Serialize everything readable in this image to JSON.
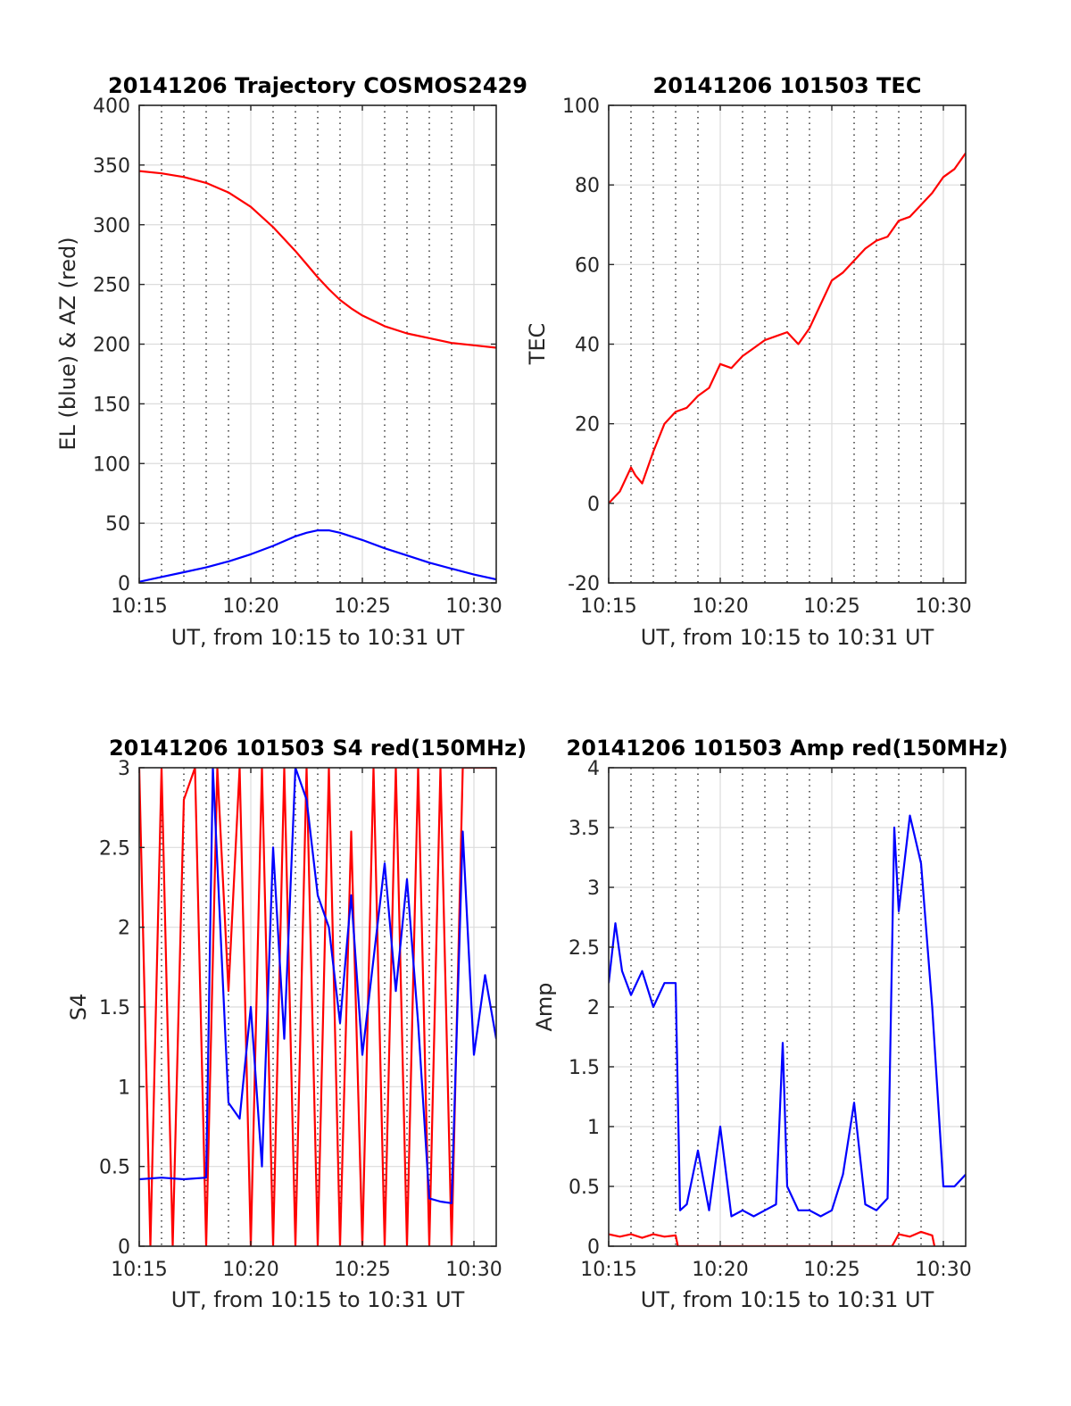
{
  "chart_data": [
    {
      "id": "trajectory",
      "type": "line",
      "title": "20141206 Trajectory COSMOS2429",
      "xlabel": "UT, from 10:15 to 10:31 UT",
      "ylabel": "EL (blue) & AZ (red)",
      "xlim": [
        0,
        16
      ],
      "ylim": [
        0,
        400
      ],
      "x_ticks": [
        "10:15",
        "10:20",
        "10:25",
        "10:30"
      ],
      "y_ticks": [
        0,
        50,
        100,
        150,
        200,
        250,
        300,
        350,
        400
      ],
      "grid": true,
      "colors": {
        "az": "#ff0000",
        "el": "#0000ff"
      },
      "series": [
        {
          "name": "AZ (red)",
          "color": "#ff0000",
          "x": [
            0,
            1,
            2,
            3,
            4,
            5,
            6,
            7,
            7.5,
            8,
            8.5,
            9,
            9.5,
            10,
            11,
            12,
            13,
            14,
            15,
            16
          ],
          "values": [
            345,
            343,
            340,
            335,
            327,
            315,
            298,
            278,
            267,
            256,
            246,
            237,
            230,
            224,
            215,
            209,
            205,
            201,
            199,
            197
          ]
        },
        {
          "name": "EL (blue)",
          "color": "#0000ff",
          "x": [
            0,
            1,
            2,
            3,
            4,
            5,
            6,
            7,
            7.5,
            8,
            8.5,
            9,
            10,
            11,
            12,
            13,
            14,
            15,
            16
          ],
          "values": [
            1,
            5,
            9,
            13,
            18,
            24,
            31,
            39,
            42,
            44,
            44,
            42,
            36,
            29,
            23,
            17,
            12,
            7,
            3
          ]
        }
      ]
    },
    {
      "id": "tec",
      "type": "line",
      "title": "20141206 101503 TEC",
      "xlabel": "UT, from 10:15 to 10:31 UT",
      "ylabel": "TEC",
      "xlim": [
        0,
        16
      ],
      "ylim": [
        -20,
        100
      ],
      "x_ticks": [
        "10:15",
        "10:20",
        "10:25",
        "10:30"
      ],
      "y_ticks": [
        -20,
        0,
        20,
        40,
        60,
        80,
        100
      ],
      "grid": true,
      "series": [
        {
          "name": "",
          "color": "#ff0000",
          "x": [
            0,
            0.5,
            1,
            1.2,
            1.5,
            2,
            2.5,
            3,
            3.5,
            4,
            4.5,
            5,
            5.5,
            6,
            6.5,
            7,
            7.5,
            8,
            8.5,
            9,
            9.5,
            10,
            10.5,
            11,
            11.5,
            12,
            12.5,
            13,
            13.5,
            14,
            14.5,
            15,
            15.5,
            16
          ],
          "values": [
            0,
            3,
            9,
            7,
            5,
            13,
            20,
            23,
            24,
            27,
            29,
            35,
            34,
            37,
            39,
            41,
            42,
            43,
            40,
            44,
            50,
            56,
            58,
            61,
            64,
            66,
            67,
            71,
            72,
            75,
            78,
            82,
            84,
            88
          ]
        }
      ]
    },
    {
      "id": "s4",
      "type": "line",
      "title": "20141206 101503 S4 red(150MHz)",
      "xlabel": "UT, from 10:15 to 10:31 UT",
      "ylabel": "S4",
      "xlim": [
        0,
        16
      ],
      "ylim": [
        0,
        3
      ],
      "x_ticks": [
        "10:15",
        "10:20",
        "10:25",
        "10:30"
      ],
      "y_ticks": [
        0,
        0.5,
        1,
        1.5,
        2,
        2.5,
        3
      ],
      "grid": true,
      "series": [
        {
          "name": "",
          "color": "#0000ff",
          "x": [
            0,
            1,
            2,
            3,
            3.3,
            4,
            4.5,
            5,
            5.5,
            6,
            6.5,
            7,
            7.5,
            8,
            8.5,
            9,
            9.5,
            10,
            10.5,
            11,
            11.5,
            12,
            12.5,
            13,
            13.5,
            14,
            14.5,
            15,
            15.5,
            16
          ],
          "values": [
            0.42,
            0.43,
            0.42,
            0.43,
            3,
            0.9,
            0.8,
            1.5,
            0.5,
            2.5,
            1.3,
            3,
            2.8,
            2.2,
            2.0,
            1.4,
            2.2,
            1.2,
            1.8,
            2.4,
            1.6,
            2.3,
            1.4,
            0.3,
            0.28,
            0.27,
            2.6,
            1.2,
            1.7,
            1.3
          ]
        },
        {
          "name": "",
          "color": "#ff0000",
          "x": [
            0,
            0.5,
            1,
            1.5,
            2,
            2.5,
            3,
            3.5,
            4,
            4.5,
            5,
            5.5,
            6,
            6.5,
            7,
            7.5,
            8,
            8.5,
            9,
            9.5,
            10,
            10.5,
            11,
            11.5,
            12,
            12.5,
            13,
            13.5,
            14,
            14.5,
            15,
            15.5,
            16
          ],
          "values": [
            3,
            0,
            3,
            0,
            2.8,
            3,
            0,
            3,
            1.6,
            3,
            0,
            3,
            0,
            3,
            0,
            3,
            0,
            3,
            0,
            2.6,
            0,
            3,
            0,
            3,
            0,
            3,
            0,
            3,
            0,
            3,
            3,
            3,
            3
          ]
        }
      ]
    },
    {
      "id": "amp",
      "type": "line",
      "title": "20141206 101503 Amp red(150MHz)",
      "xlabel": "UT, from 10:15 to 10:31 UT",
      "ylabel": "Amp",
      "xlim": [
        0,
        16
      ],
      "ylim": [
        0,
        4
      ],
      "x_ticks": [
        "10:15",
        "10:20",
        "10:25",
        "10:30"
      ],
      "y_ticks": [
        0,
        0.5,
        1,
        1.5,
        2,
        2.5,
        3,
        3.5,
        4
      ],
      "grid": true,
      "series": [
        {
          "name": "",
          "color": "#0000ff",
          "x": [
            0,
            0.3,
            0.6,
            1,
            1.5,
            2,
            2.5,
            3,
            3.2,
            3.5,
            4,
            4.5,
            5,
            5.5,
            6,
            6.5,
            7,
            7.5,
            7.8,
            8,
            8.5,
            9,
            9.5,
            10,
            10.5,
            11,
            11.5,
            12,
            12.5,
            12.8,
            13,
            13.5,
            14,
            14.5,
            15,
            15.5,
            16
          ],
          "values": [
            2.2,
            2.7,
            2.3,
            2.1,
            2.3,
            2.0,
            2.2,
            2.2,
            0.3,
            0.35,
            0.8,
            0.3,
            1.0,
            0.25,
            0.3,
            0.25,
            0.3,
            0.35,
            1.7,
            0.5,
            0.3,
            0.3,
            0.25,
            0.3,
            0.6,
            1.2,
            0.35,
            0.3,
            0.4,
            3.5,
            2.8,
            3.6,
            3.2,
            2.0,
            0.5,
            0.5,
            0.6
          ]
        },
        {
          "name": "",
          "color": "#ff0000",
          "x": [
            0,
            0.5,
            1,
            1.5,
            2,
            2.5,
            3,
            3.1,
            12.7,
            13,
            13.5,
            14,
            14.5,
            14.6
          ],
          "values": [
            0.1,
            0.08,
            0.1,
            0.07,
            0.1,
            0.08,
            0.09,
            0,
            0,
            0.1,
            0.08,
            0.12,
            0.09,
            0
          ]
        }
      ]
    }
  ]
}
